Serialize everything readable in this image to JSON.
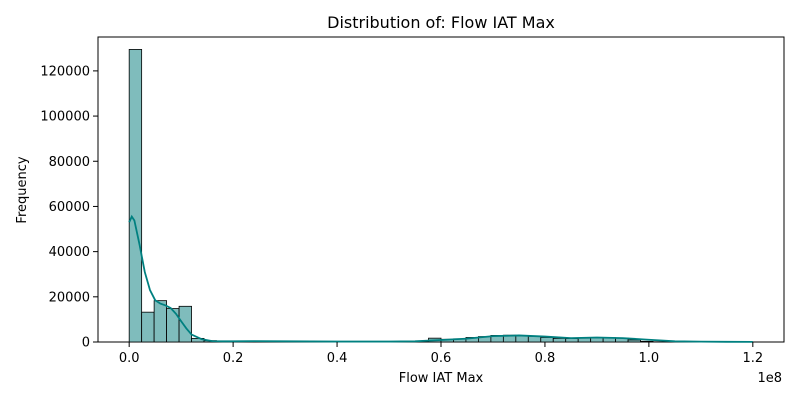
{
  "chart_data": {
    "type": "histogram",
    "title": "Distribution of: Flow IAT Max",
    "xlabel": "Flow IAT Max",
    "ylabel": "Frequency",
    "x_offset_label": "1e8",
    "xlim": [
      -0.06,
      1.26
    ],
    "ylim": [
      0,
      135000
    ],
    "x_scale_factor": 100000000,
    "xticks": [
      0.0,
      0.2,
      0.4,
      0.6,
      0.8,
      1.0,
      1.2
    ],
    "xtick_labels": [
      "0.0",
      "0.2",
      "0.4",
      "0.6",
      "0.8",
      "1.0",
      "1.2"
    ],
    "yticks": [
      0,
      20000,
      40000,
      60000,
      80000,
      100000,
      120000
    ],
    "ytick_labels": [
      "0",
      "20000",
      "40000",
      "60000",
      "80000",
      "100000",
      "120000"
    ],
    "bin_width": 0.024,
    "bin_starts": [
      0.0,
      0.024,
      0.048,
      0.072,
      0.096,
      0.12,
      0.144,
      0.168,
      0.192,
      0.216,
      0.24,
      0.264,
      0.288,
      0.312,
      0.336,
      0.36,
      0.384,
      0.408,
      0.432,
      0.456,
      0.48,
      0.504,
      0.528,
      0.552,
      0.576,
      0.6,
      0.624,
      0.648,
      0.672,
      0.696,
      0.72,
      0.744,
      0.768,
      0.792,
      0.816,
      0.84,
      0.864,
      0.888,
      0.912,
      0.936,
      0.96,
      0.984,
      1.008,
      1.032,
      1.056,
      1.08,
      1.104,
      1.128,
      1.152,
      1.176
    ],
    "values": [
      129500,
      13200,
      18300,
      14800,
      15800,
      1600,
      600,
      300,
      200,
      300,
      200,
      100,
      100,
      100,
      100,
      100,
      100,
      100,
      100,
      100,
      100,
      100,
      100,
      300,
      1700,
      1200,
      1400,
      2000,
      2400,
      2900,
      3000,
      2700,
      2500,
      2000,
      1600,
      1500,
      1700,
      1800,
      1900,
      1700,
      900,
      300,
      100,
      100,
      100,
      100,
      100,
      50,
      50,
      50
    ],
    "kde": {
      "x": [
        0.0,
        0.005,
        0.01,
        0.02,
        0.03,
        0.04,
        0.05,
        0.06,
        0.07,
        0.08,
        0.09,
        0.1,
        0.11,
        0.12,
        0.14,
        0.16,
        0.18,
        0.2,
        0.24,
        0.3,
        0.4,
        0.5,
        0.55,
        0.6,
        0.65,
        0.7,
        0.75,
        0.8,
        0.85,
        0.9,
        0.95,
        1.0,
        1.05,
        1.1,
        1.15,
        1.2
      ],
      "y": [
        53000,
        55500,
        53800,
        43000,
        31000,
        23000,
        18500,
        17000,
        16200,
        15000,
        12500,
        9200,
        6000,
        3300,
        1200,
        400,
        300,
        300,
        400,
        300,
        200,
        200,
        300,
        900,
        1500,
        2600,
        2900,
        2400,
        1700,
        2000,
        1700,
        1000,
        300,
        150,
        80,
        50
      ]
    },
    "colors": {
      "bar_fill": "#7fbcbc",
      "bar_edge": "#000000",
      "kde_line": "#008080",
      "axes": "#000000"
    },
    "grid": false,
    "legend": "none"
  }
}
